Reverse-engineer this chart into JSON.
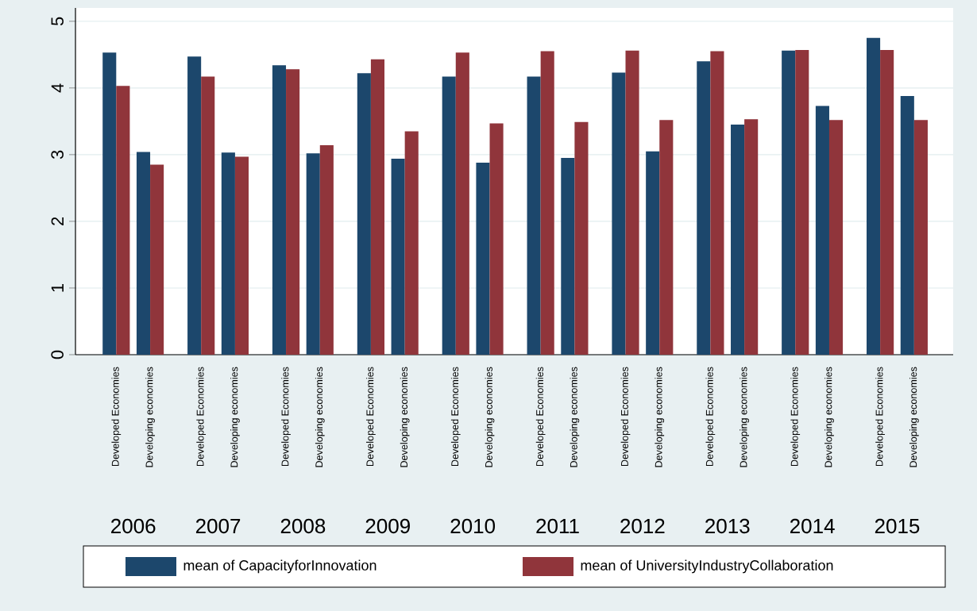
{
  "chart_data": {
    "type": "bar",
    "categories": [
      "Developed Economies",
      "Developing economies",
      "Developed Economies",
      "Developing economies",
      "Developed Economies",
      "Developing economies",
      "Developed Economies",
      "Developing economies",
      "Developed Economies",
      "Developing economies",
      "Developed Economies",
      "Developing economies",
      "Developed Economies",
      "Developing economies",
      "Developed Economies",
      "Developing economies",
      "Developed Economies",
      "Developing economies",
      "Developed Economies",
      "Developing economies"
    ],
    "series": [
      {
        "name": "mean of CapacityforInnovation",
        "color": "#1c476c",
        "values": [
          4.53,
          3.04,
          4.47,
          3.03,
          4.34,
          3.02,
          4.22,
          2.94,
          4.17,
          2.88,
          4.17,
          2.95,
          4.23,
          3.05,
          4.4,
          3.45,
          4.56,
          3.73,
          4.75,
          3.88
        ]
      },
      {
        "name": "mean of UniversityIndustryCollaboration",
        "color": "#90353b",
        "values": [
          4.03,
          2.85,
          4.17,
          2.97,
          4.28,
          3.14,
          4.43,
          3.35,
          4.53,
          3.47,
          4.55,
          3.49,
          4.56,
          3.52,
          4.55,
          3.53,
          4.57,
          3.52,
          4.57,
          3.52
        ]
      }
    ],
    "annotations": [
      "2006",
      "2007",
      "2008",
      "2009",
      "2010",
      "2011",
      "2012",
      "2013",
      "2014",
      "2015"
    ],
    "ylim": [
      0,
      5.2
    ],
    "yticks": [
      0,
      1,
      2,
      3,
      4,
      5
    ],
    "grid": "y",
    "legend": "bottom"
  }
}
